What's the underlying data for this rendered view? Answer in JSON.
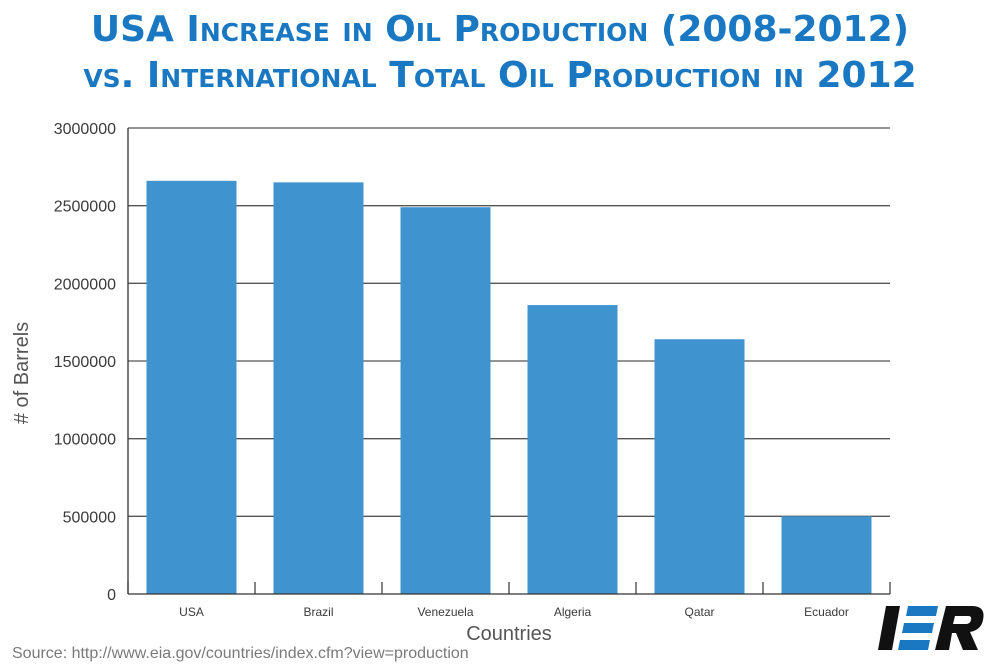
{
  "title_line1": "USA Increase in Oil Production (2008-2012)",
  "title_line2": "vs. International Total Oil Production in 2012",
  "source": "Source: http://www.eia.gov/countries/index.cfm?view=production",
  "logo_text": "IER",
  "colors": {
    "bar": "#3f94cf",
    "title": "#1a78c2",
    "logo": "#111111",
    "logo_accent": "#1a78c2"
  },
  "chart_data": {
    "type": "bar",
    "title": "USA Increase in Oil Production (2008-2012) vs. International Total Oil Production in 2012",
    "xlabel": "Countries",
    "ylabel": "# of Barrels",
    "categories": [
      "USA",
      "Brazil",
      "Venezuela",
      "Algeria",
      "Qatar",
      "Ecuador"
    ],
    "values": [
      2660000,
      2650000,
      2490000,
      1860000,
      1640000,
      500000
    ],
    "ylim": [
      0,
      3000000
    ],
    "yticks": [
      0,
      500000,
      1000000,
      1500000,
      2000000,
      2500000,
      3000000
    ],
    "ytick_labels": [
      "0",
      "500000",
      "1000000",
      "1500000",
      "2000000",
      "2500000",
      "3000000"
    ],
    "grid": true,
    "legend": "none"
  }
}
